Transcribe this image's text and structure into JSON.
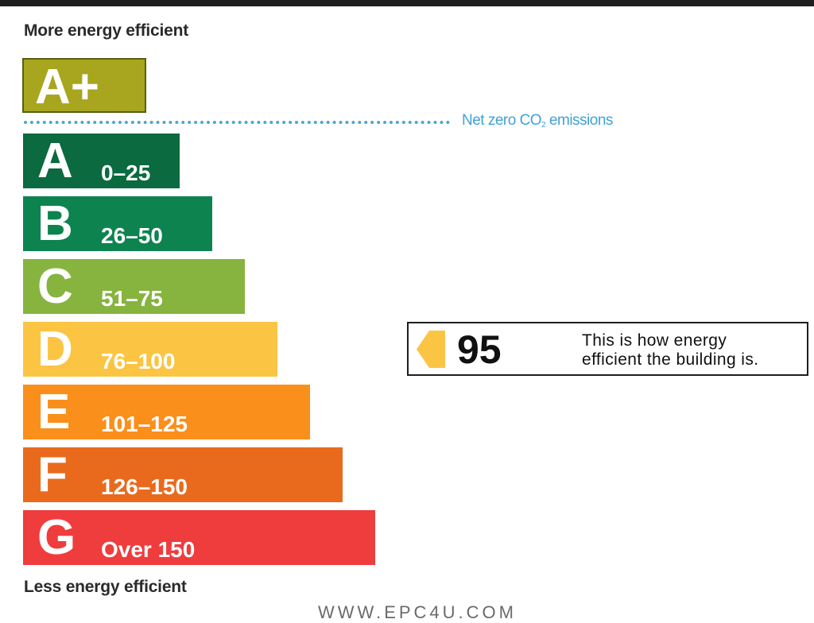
{
  "chart_data": {
    "type": "bar",
    "top_label": "More energy efficient",
    "bottom_label": "Less energy efficient",
    "top_rating": {
      "label": "A+",
      "color": "#a7a61e"
    },
    "net_zero_label": {
      "prefix": "Net zero CO",
      "subscript": "2",
      "suffix": " emissions"
    },
    "categories": [
      "A",
      "B",
      "C",
      "D",
      "E",
      "F",
      "G"
    ],
    "ranges": [
      "0–25",
      "26–50",
      "51–75",
      "76–100",
      "101–125",
      "126–150",
      "Over 150"
    ],
    "colors": [
      "#0b6a3f",
      "#0d8350",
      "#86b43f",
      "#fbc543",
      "#fa8f1b",
      "#e96a1d",
      "#ef3c3d"
    ],
    "rating": {
      "value": 95,
      "band": "D",
      "pointer_color": "#fbc543",
      "description": [
        "This is how energy",
        "efficient the building is."
      ]
    }
  },
  "footer": {
    "text": "WWW.EPC4U.COM"
  }
}
